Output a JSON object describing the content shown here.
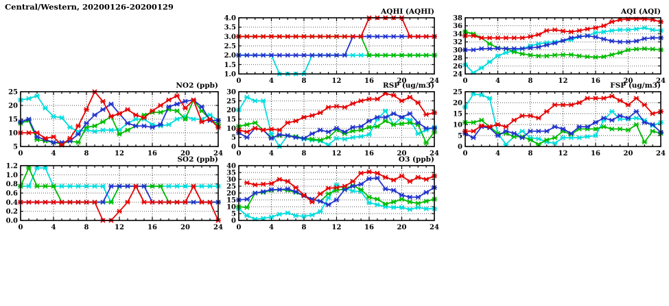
{
  "page_title": "Central/Western, 20200126-20200129",
  "colors": {
    "red": "#e60000",
    "green": "#00bb00",
    "blue": "#2233cc",
    "cyan": "#00dddd",
    "axis": "#000000"
  },
  "x_axis": {
    "min": 0,
    "max": 24,
    "major_step": 4,
    "minor_step": 1,
    "ticks": [
      "0",
      "4",
      "8",
      "12",
      "16",
      "20",
      "24"
    ]
  },
  "chart_data": [
    {
      "id": "aqhi",
      "type": "line",
      "title": "AQHI (AQHI)",
      "grid_position": {
        "row": 0,
        "col": 1
      },
      "ylim": [
        1.0,
        4.0
      ],
      "yticks": [
        "1.0",
        "1.5",
        "2.0",
        "2.5",
        "3.0",
        "3.5",
        "4.0"
      ],
      "series": [
        {
          "name": "cyan",
          "values": [
            2,
            2,
            2,
            2,
            2,
            1,
            1,
            1,
            1,
            2,
            2,
            2,
            2,
            2,
            2,
            2,
            2,
            2,
            2,
            2,
            2,
            2,
            2,
            2,
            2
          ]
        },
        {
          "name": "green",
          "values": [
            3,
            3,
            3,
            3,
            3,
            3,
            3,
            3,
            3,
            3,
            3,
            3,
            3,
            3,
            3,
            3,
            2,
            2,
            2,
            2,
            2,
            2,
            2,
            2,
            2
          ]
        },
        {
          "name": "blue",
          "values": [
            2,
            2,
            2,
            2,
            2,
            2,
            2,
            2,
            2,
            2,
            2,
            2,
            2,
            2,
            3,
            3,
            3,
            3,
            3,
            3,
            3,
            3,
            3,
            3,
            3
          ]
        },
        {
          "name": "red",
          "values": [
            3,
            3,
            3,
            3,
            3,
            3,
            3,
            3,
            3,
            3,
            3,
            3,
            3,
            3,
            3,
            3,
            4,
            4,
            4,
            4,
            4,
            3,
            3,
            3,
            3
          ]
        }
      ]
    },
    {
      "id": "aqi",
      "type": "line",
      "title": "AQI (AQI)",
      "grid_position": {
        "row": 0,
        "col": 2
      },
      "ylim": [
        24,
        38
      ],
      "yticks": [
        "24",
        "26",
        "28",
        "30",
        "32",
        "34",
        "36",
        "38"
      ],
      "series": [
        {
          "name": "cyan",
          "values": [
            26.3,
            24.3,
            25.5,
            27,
            28.5,
            29.3,
            29.8,
            30.3,
            31,
            31.5,
            31.8,
            32,
            32.3,
            32.5,
            33.3,
            33.5,
            34.3,
            34.5,
            34.8,
            35,
            35,
            35.2,
            35.5,
            35,
            34.8
          ]
        },
        {
          "name": "green",
          "values": [
            34.5,
            34,
            33,
            31.5,
            30.5,
            30.3,
            29.5,
            29,
            28.7,
            28.5,
            28.5,
            28.7,
            28.8,
            28.8,
            28.5,
            28.3,
            28.2,
            28.3,
            28.8,
            29.3,
            30,
            30.2,
            30.3,
            30.2,
            30
          ]
        },
        {
          "name": "blue",
          "values": [
            30,
            30,
            30.3,
            30.3,
            30.4,
            30.3,
            30.3,
            30.3,
            30.5,
            30.7,
            31.2,
            31.7,
            32.3,
            33,
            33.3,
            33.5,
            33.2,
            32.7,
            32.2,
            32,
            32,
            32.2,
            32.8,
            33,
            33
          ]
        },
        {
          "name": "red",
          "values": [
            33.5,
            33.5,
            33,
            33,
            33,
            33,
            33,
            33,
            33.3,
            33.8,
            34.8,
            35,
            34.7,
            34.5,
            34.8,
            35.2,
            35.5,
            36,
            37,
            37.5,
            37.7,
            37.7,
            37.7,
            37.5,
            37
          ]
        }
      ]
    },
    {
      "id": "no2",
      "type": "line",
      "title": "NO2 (ppb)",
      "grid_position": {
        "row": 1,
        "col": 0
      },
      "ylim": [
        5,
        25
      ],
      "yticks": [
        "5",
        "10",
        "15",
        "20",
        "25"
      ],
      "series": [
        {
          "name": "cyan",
          "values": [
            22,
            22.5,
            23.5,
            19,
            16,
            15.5,
            12,
            10.5,
            11,
            10.5,
            11,
            11,
            11,
            13.5,
            15,
            15,
            13,
            12.5,
            13,
            15,
            16,
            15,
            15,
            16.5,
            14.5
          ]
        },
        {
          "name": "green",
          "values": [
            13.5,
            14.5,
            7.5,
            7,
            6.5,
            6,
            7,
            6.5,
            12,
            12.5,
            14,
            16,
            9.5,
            11,
            12.5,
            16.5,
            17.5,
            17.5,
            18.5,
            18,
            15,
            22,
            18,
            15,
            13
          ]
        },
        {
          "name": "blue",
          "values": [
            14,
            15,
            8.5,
            7.5,
            6.5,
            6.5,
            7,
            9.5,
            13.5,
            16.5,
            18.5,
            20.5,
            17,
            13.5,
            12.5,
            12.5,
            12,
            13,
            19.5,
            20.5,
            21.5,
            22,
            19.5,
            14.5,
            14.5
          ]
        },
        {
          "name": "red",
          "values": [
            10,
            10,
            10,
            8,
            8.5,
            5.5,
            8,
            12.5,
            18.5,
            25,
            21.5,
            16,
            17,
            18.5,
            16.5,
            15.5,
            18,
            20,
            22,
            23.5,
            19,
            22,
            14,
            15,
            12
          ]
        }
      ]
    },
    {
      "id": "rsp",
      "type": "line",
      "title": "RSP (ug/m3)",
      "grid_position": {
        "row": 1,
        "col": 1
      },
      "ylim": [
        0,
        30
      ],
      "yticks": [
        "0",
        "5",
        "10",
        "15",
        "20",
        "25",
        "30"
      ],
      "series": [
        {
          "name": "cyan",
          "values": [
            20,
            27,
            25,
            25,
            7,
            0,
            6,
            5,
            4,
            3.5,
            3,
            1,
            4.5,
            4,
            5,
            5.5,
            6.5,
            15,
            19.5,
            12,
            16,
            14.5,
            7,
            9,
            10.5
          ]
        },
        {
          "name": "green",
          "values": [
            11,
            12,
            13,
            9,
            5,
            6,
            6,
            5.5,
            4.5,
            4,
            3.5,
            5,
            9,
            7,
            8.5,
            9,
            10.5,
            11,
            14,
            12,
            12.5,
            13,
            12,
            2,
            8
          ]
        },
        {
          "name": "blue",
          "values": [
            7.5,
            5,
            10,
            9,
            4.5,
            6.5,
            6,
            5,
            4.5,
            7,
            9,
            8,
            10,
            8,
            10.5,
            11,
            14,
            16,
            16,
            18,
            16,
            18,
            13,
            10,
            10
          ]
        },
        {
          "name": "red",
          "values": [
            9,
            8,
            10,
            9,
            9.5,
            9,
            13,
            14,
            16,
            17,
            18.5,
            21.5,
            22,
            21.5,
            23.5,
            25,
            26,
            26,
            29,
            28,
            25,
            27,
            24,
            17.5,
            18.5
          ]
        }
      ]
    },
    {
      "id": "fsp",
      "type": "line",
      "title": "FSP (ug/m3)",
      "grid_position": {
        "row": 1,
        "col": 2
      },
      "ylim": [
        0,
        25
      ],
      "yticks": [
        "0",
        "5",
        "10",
        "15",
        "20",
        "25"
      ],
      "series": [
        {
          "name": "cyan",
          "values": [
            18,
            24,
            23.5,
            22,
            6,
            1,
            4.5,
            7,
            4,
            3.5,
            2,
            1.5,
            4,
            4,
            4,
            4.5,
            5,
            12,
            16,
            12.5,
            12.5,
            13,
            12,
            9.5,
            11
          ]
        },
        {
          "name": "green",
          "values": [
            11,
            11,
            12,
            9,
            6,
            6,
            4.5,
            4.5,
            3,
            1,
            3,
            4,
            7,
            5.5,
            8,
            8,
            8,
            9,
            8,
            8,
            7.5,
            10,
            2,
            7,
            6
          ]
        },
        {
          "name": "blue",
          "values": [
            6,
            4,
            9,
            8.5,
            5,
            7,
            6,
            4,
            7,
            7,
            7,
            9,
            8,
            6,
            9,
            9,
            11,
            13,
            12,
            14,
            13,
            16,
            11,
            10,
            6.5
          ]
        },
        {
          "name": "red",
          "values": [
            7,
            7,
            9.5,
            9,
            10,
            9,
            12,
            14,
            14,
            13,
            16,
            19,
            19,
            19,
            20,
            22,
            22,
            22,
            23,
            21,
            19,
            22,
            19,
            15,
            16
          ]
        }
      ]
    },
    {
      "id": "so2",
      "type": "line",
      "title": "SO2 (ppb)",
      "grid_position": {
        "row": 2,
        "col": 0
      },
      "ylim": [
        0.0,
        1.2
      ],
      "yticks": [
        "0.0",
        "0.2",
        "0.4",
        "0.6",
        "0.8",
        "1.0",
        "1.2"
      ],
      "series": [
        {
          "name": "cyan",
          "values": [
            0.75,
            0.75,
            1.15,
            1.15,
            0.75,
            0.75,
            0.75,
            0.75,
            0.75,
            0.75,
            0.75,
            0.4,
            0.75,
            0.75,
            0.75,
            0.75,
            0.75,
            0.75,
            0.75,
            0.75,
            0.75,
            0.75,
            0.75,
            0.75,
            0.75
          ]
        },
        {
          "name": "green",
          "values": [
            0.75,
            1.15,
            0.75,
            0.75,
            0.75,
            0.4,
            0.4,
            0.4,
            0.4,
            0.4,
            0.4,
            0.4,
            0.75,
            0.75,
            0.75,
            0.75,
            0.75,
            0.75,
            0.4,
            0.4,
            0.4,
            0.4,
            0.4,
            0.4,
            0.4
          ]
        },
        {
          "name": "blue",
          "values": [
            0.4,
            0.4,
            0.4,
            0.4,
            0.4,
            0.4,
            0.4,
            0.4,
            0.4,
            0.4,
            0.4,
            0.75,
            0.75,
            0.75,
            0.75,
            0.75,
            0.4,
            0.4,
            0.4,
            0.4,
            0.4,
            0.4,
            0.4,
            0.4,
            0.4
          ]
        },
        {
          "name": "red",
          "values": [
            0.4,
            0.4,
            0.4,
            0.4,
            0.4,
            0.4,
            0.4,
            0.4,
            0.4,
            0.4,
            0.0,
            0.0,
            0.2,
            0.4,
            0.75,
            0.4,
            0.4,
            0.4,
            0.4,
            0.4,
            0.4,
            0.75,
            0.4,
            0.4,
            0.0
          ]
        }
      ]
    },
    {
      "id": "o3",
      "type": "line",
      "title": "O3 (ppb)",
      "grid_position": {
        "row": 2,
        "col": 1
      },
      "ylim": [
        0,
        40
      ],
      "yticks": [
        "0",
        "5",
        "10",
        "15",
        "20",
        "25",
        "30",
        "35",
        "40"
      ],
      "series": [
        {
          "name": "cyan",
          "values": [
            8.5,
            3.5,
            1,
            1.5,
            2.5,
            4.5,
            5.5,
            3.5,
            3,
            4,
            6.5,
            16.5,
            26,
            23.5,
            21.5,
            21,
            13,
            11.5,
            10,
            9.5,
            9.5,
            8,
            9.5,
            8.5,
            8.5
          ]
        },
        {
          "name": "green",
          "values": [
            10,
            9.5,
            20,
            20.5,
            22,
            22.5,
            22,
            20.5,
            18,
            15.5,
            14,
            19.5,
            22,
            23,
            25.5,
            22.5,
            17,
            15.5,
            12,
            13.5,
            15.5,
            13.5,
            12.5,
            14,
            15.5
          ]
        },
        {
          "name": "blue",
          "values": [
            15,
            15.5,
            20,
            21,
            22.5,
            22.5,
            23,
            21,
            18,
            15.5,
            14,
            11.5,
            15,
            22.5,
            25,
            26.5,
            30.5,
            31,
            23,
            22,
            18.5,
            17,
            17,
            20.5,
            24
          ]
        },
        {
          "name": "red",
          "values": [
            null,
            27.5,
            26,
            26.5,
            27,
            30,
            28.5,
            24,
            18.5,
            13.5,
            19.5,
            23.5,
            24,
            25,
            28.5,
            34.5,
            35.5,
            34.5,
            31.5,
            29.5,
            32.5,
            28.5,
            31.5,
            30,
            32.5
          ]
        }
      ]
    }
  ]
}
